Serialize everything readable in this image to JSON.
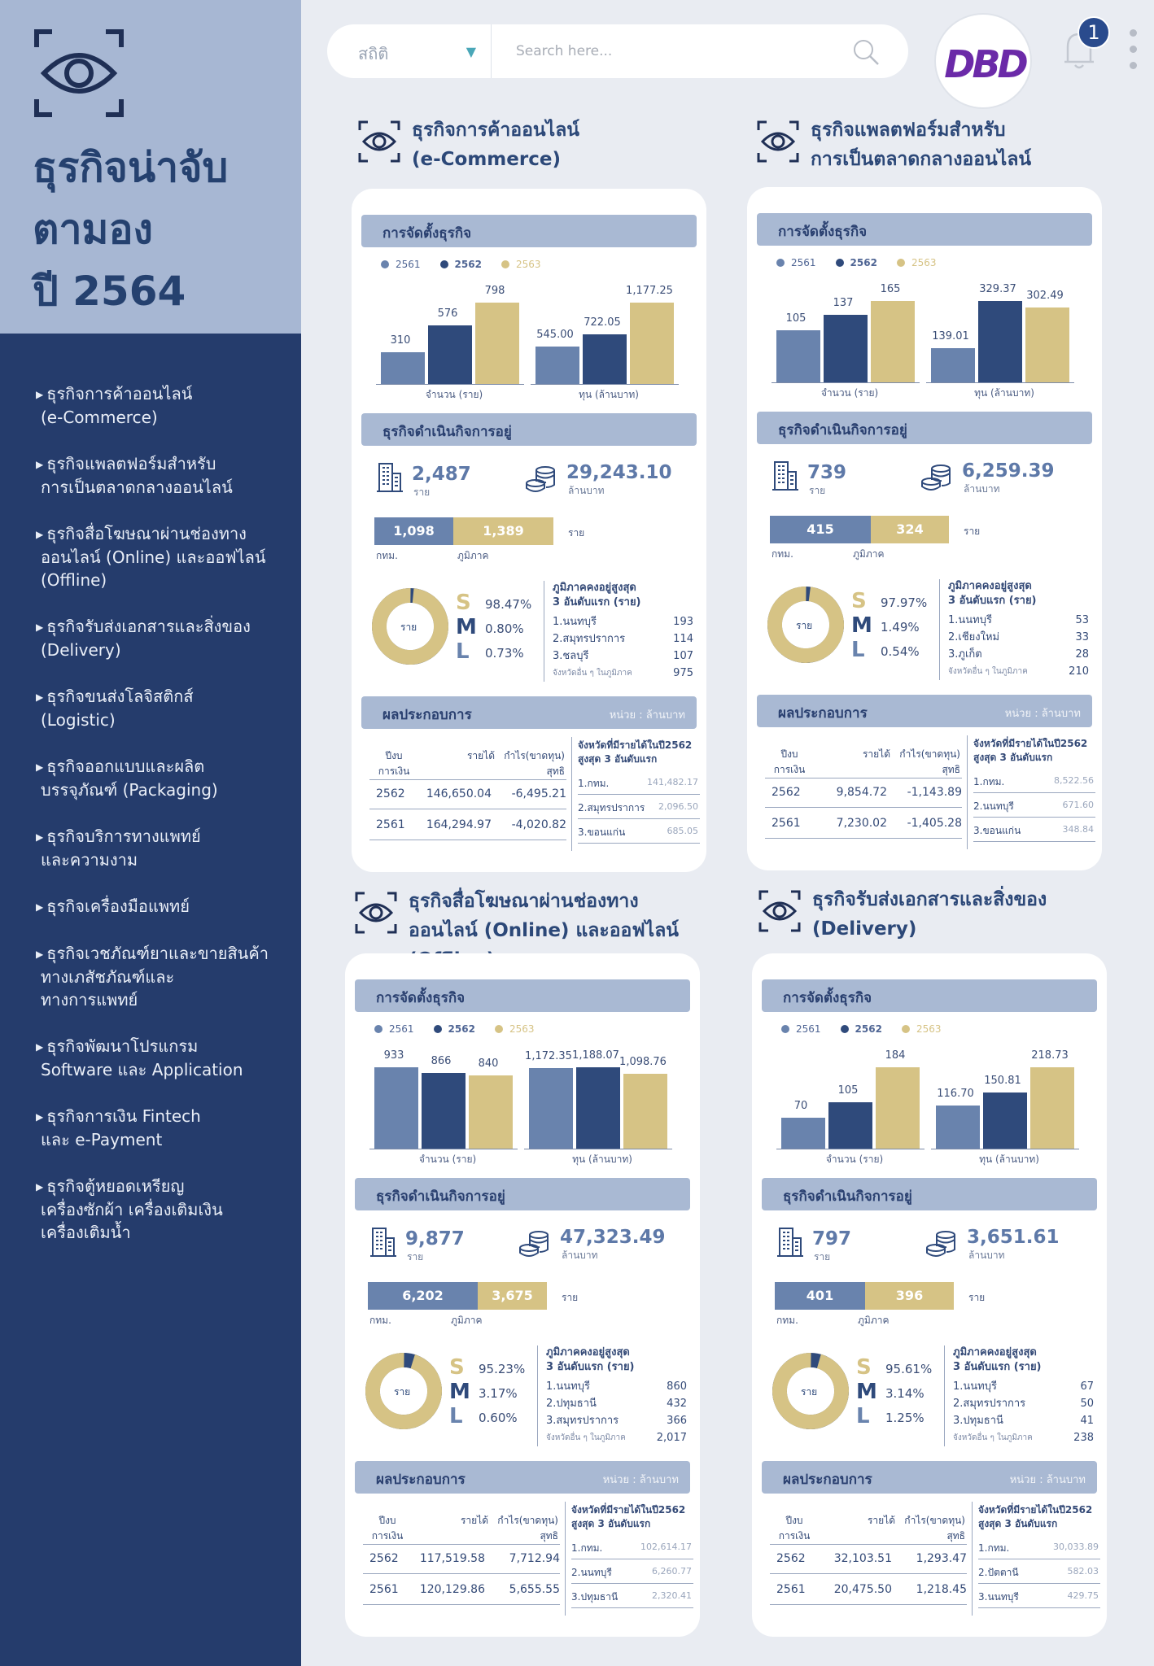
{
  "sidebar": {
    "title": [
      "ธุรกิจน่าจับ",
      "ตามอง",
      "ปี 2564"
    ],
    "items": [
      {
        "l1": "ธุรกิจการค้าออนไลน์",
        "l2": "(e-Commerce)"
      },
      {
        "l1": "ธุรกิจแพลตฟอร์มสำหรับ",
        "l2": "การเป็นตลาดกลางออนไลน์"
      },
      {
        "l1": "ธุรกิจสื่อโฆษณาผ่านช่องทาง",
        "l2": "ออนไลน์ (Online) และออฟไลน์",
        "l3": "(Offline)"
      },
      {
        "l1": "ธุรกิจรับส่งเอกสารและสิ่งของ",
        "l2": "(Delivery)"
      },
      {
        "l1": "ธุรกิจขนส่งโลจิสติกส์",
        "l2": "(Logistic)"
      },
      {
        "l1": "ธุรกิจออกแบบและผลิต",
        "l2": "บรรจุภัณฑ์ (Packaging)"
      },
      {
        "l1": "ธุรกิจบริการทางแพทย์",
        "l2": "และความงาม"
      },
      {
        "l1": "ธุรกิจเครื่องมือแพทย์"
      },
      {
        "l1": "ธุรกิจเวชภัณฑ์ยาและขายสินค้า",
        "l2": "ทางเภสัชภัณฑ์และ",
        "l3": "ทางการแพทย์"
      },
      {
        "l1": "ธุรกิจพัฒนาโปรแกรม",
        "l2": "Software และ Application"
      },
      {
        "l1": "ธุรกิจการเงิน Fintech",
        "l2": "และ e-Payment"
      },
      {
        "l1": "ธุรกิจตู้หยอดเหรียญ",
        "l2": "เครื่องซักผ้า เครื่องเติมเงิน",
        "l3": "เครื่องเติมน้ำ"
      }
    ]
  },
  "topbar": {
    "category": "สถิติ",
    "search_placeholder": "Search here...",
    "logo": "DBD",
    "notif_count": "1"
  },
  "common": {
    "setup": "การจัดตั้งธุรกิจ",
    "operating": "ธุรกิจดำเนินกิจการอยู่",
    "performance": "ผลประกอบการ",
    "unit_million": "หน่วย : ล้านบาท",
    "legend": [
      "2561",
      "2562",
      "2563"
    ],
    "axis_count": "จำนวน (ราย)",
    "axis_capital": "ทุน (ล้านบาท)",
    "unit_rai": "ราย",
    "unit_mb": "ล้านบาท",
    "bkk": "กทม.",
    "region": "ภูมิภาค",
    "donut_center": "ราย",
    "region_title": [
      "ภูมิภาคคงอยู่สูงสุด",
      "3 อันดับแรก (ราย)"
    ],
    "other_prov": "จังหวัดอื่น ๆ ในภูมิภาค",
    "col_year": [
      "ปีงบ",
      "การเงิน"
    ],
    "col_rev": "รายได้",
    "col_profit": [
      "กำไร(ขาดทุน)",
      "สุทธิ"
    ],
    "prov_title": [
      "จังหวัดที่มีรายได้ในปี2562",
      "สูงสุด 3 อันดับแรก"
    ],
    "sml": [
      "S",
      "M",
      "L"
    ]
  },
  "colors": {
    "y2561": "#6983ad",
    "y2562": "#2f4a7b",
    "y2563": "#d6c385",
    "sidebar": "#253c6c",
    "header": "#a9b9d3"
  },
  "sections": [
    {
      "title": [
        "ธุรกิจการค้าออนไลน์",
        "(e-Commerce)"
      ],
      "chart_data": {
        "type": "bar",
        "categories": [
          "จำนวน (ราย)",
          "ทุน (ล้านบาท)"
        ],
        "series": [
          {
            "name": "2561",
            "values": [
              310,
              545.0
            ]
          },
          {
            "name": "2562",
            "values": [
              576,
              722.05
            ]
          },
          {
            "name": "2563",
            "values": [
              798,
              1177.25
            ]
          }
        ],
        "labels": [
          [
            "310",
            "576",
            "798"
          ],
          [
            "545.00",
            "722.05",
            "1,177.25"
          ]
        ]
      },
      "count": "2,487",
      "capital": "29,243.10",
      "bkk": "1,098",
      "region": "1,389",
      "bkk_val": 1098,
      "region_val": 1389,
      "s": "98.47%",
      "m": "0.80%",
      "l": "0.73%",
      "s_frac": 0.9847,
      "top_regions": [
        [
          "1.นนทบุรี",
          "193"
        ],
        [
          "2.สมุทรปราการ",
          "114"
        ],
        [
          "3.ชลบุรี",
          "107"
        ]
      ],
      "other": "975",
      "perf": [
        [
          "2562",
          "146,650.04",
          "-6,495.21"
        ],
        [
          "2561",
          "164,294.97",
          "-4,020.82"
        ]
      ],
      "prov": [
        [
          "1.กทม.",
          "141,482.17"
        ],
        [
          "2.สมุทรปราการ",
          "2,096.50"
        ],
        [
          "3.ขอนแก่น",
          "685.05"
        ]
      ]
    },
    {
      "title": [
        "ธุรกิจแพลตฟอร์มสำหรับ",
        "การเป็นตลาดกลางออนไลน์"
      ],
      "chart_data": {
        "type": "bar",
        "categories": [
          "จำนวน (ราย)",
          "ทุน (ล้านบาท)"
        ],
        "series": [
          {
            "name": "2561",
            "values": [
              105,
              139.01
            ]
          },
          {
            "name": "2562",
            "values": [
              137,
              329.37
            ]
          },
          {
            "name": "2563",
            "values": [
              165,
              302.49
            ]
          }
        ],
        "labels": [
          [
            "105",
            "137",
            "165"
          ],
          [
            "139.01",
            "329.37",
            "302.49"
          ]
        ]
      },
      "count": "739",
      "capital": "6,259.39",
      "bkk": "415",
      "region": "324",
      "bkk_val": 415,
      "region_val": 324,
      "s": "97.97%",
      "m": "1.49%",
      "l": "0.54%",
      "s_frac": 0.9797,
      "top_regions": [
        [
          "1.นนทบุรี",
          "53"
        ],
        [
          "2.เชียงใหม่",
          "33"
        ],
        [
          "3.ภูเก็ต",
          "28"
        ]
      ],
      "other": "210",
      "perf": [
        [
          "2562",
          "9,854.72",
          "-1,143.89"
        ],
        [
          "2561",
          "7,230.02",
          "-1,405.28"
        ]
      ],
      "prov": [
        [
          "1.กทม.",
          "8,522.56"
        ],
        [
          "2.นนทบุรี",
          "671.60"
        ],
        [
          "3.ขอนแก่น",
          "348.84"
        ]
      ]
    },
    {
      "title": [
        "ธุรกิจสื่อโฆษณาผ่านช่องทาง",
        "ออนไลน์ (Online) และออฟไลน์ (Offline)"
      ],
      "chart_data": {
        "type": "bar",
        "categories": [
          "จำนวน (ราย)",
          "ทุน (ล้านบาท)"
        ],
        "series": [
          {
            "name": "2561",
            "values": [
              933,
              1172.35
            ]
          },
          {
            "name": "2562",
            "values": [
              866,
              1188.07
            ]
          },
          {
            "name": "2563",
            "values": [
              840,
              1098.76
            ]
          }
        ],
        "labels": [
          [
            "933",
            "866",
            "840"
          ],
          [
            "1,172.35",
            "1,188.07",
            "1,098.76"
          ]
        ]
      },
      "count": "9,877",
      "capital": "47,323.49",
      "bkk": "6,202",
      "region": "3,675",
      "bkk_val": 6202,
      "region_val": 3675,
      "s": "95.23%",
      "m": "3.17%",
      "l": "0.60%",
      "s_frac": 0.9523,
      "top_regions": [
        [
          "1.นนทบุรี",
          "860"
        ],
        [
          "2.ปทุมธานี",
          "432"
        ],
        [
          "3.สมุทรปราการ",
          "366"
        ]
      ],
      "other": "2,017",
      "perf": [
        [
          "2562",
          "117,519.58",
          "7,712.94"
        ],
        [
          "2561",
          "120,129.86",
          "5,655.55"
        ]
      ],
      "prov": [
        [
          "1.กทม.",
          "102,614.17"
        ],
        [
          "2.นนทบุรี",
          "6,260.77"
        ],
        [
          "3.ปทุมธานี",
          "2,320.41"
        ]
      ]
    },
    {
      "title": [
        "ธุรกิจรับส่งเอกสารและสิ่งของ",
        "(Delivery)"
      ],
      "chart_data": {
        "type": "bar",
        "categories": [
          "จำนวน (ราย)",
          "ทุน (ล้านบาท)"
        ],
        "series": [
          {
            "name": "2561",
            "values": [
              70,
              116.7
            ]
          },
          {
            "name": "2562",
            "values": [
              105,
              150.81
            ]
          },
          {
            "name": "2563",
            "values": [
              184,
              218.73
            ]
          }
        ],
        "labels": [
          [
            "70",
            "105",
            "184"
          ],
          [
            "116.70",
            "150.81",
            "218.73"
          ]
        ]
      },
      "count": "797",
      "capital": "3,651.61",
      "bkk": "401",
      "region": "396",
      "bkk_val": 401,
      "region_val": 396,
      "s": "95.61%",
      "m": "3.14%",
      "l": "1.25%",
      "s_frac": 0.9561,
      "top_regions": [
        [
          "1.นนทบุรี",
          "67"
        ],
        [
          "2.สมุทรปราการ",
          "50"
        ],
        [
          "3.ปทุมธานี",
          "41"
        ]
      ],
      "other": "238",
      "perf": [
        [
          "2562",
          "32,103.51",
          "1,293.47"
        ],
        [
          "2561",
          "20,475.50",
          "1,218.45"
        ]
      ],
      "prov": [
        [
          "1.กทม.",
          "30,033.89"
        ],
        [
          "2.ปัตตานี",
          "582.03"
        ],
        [
          "3.นนทบุรี",
          "429.75"
        ]
      ]
    }
  ]
}
